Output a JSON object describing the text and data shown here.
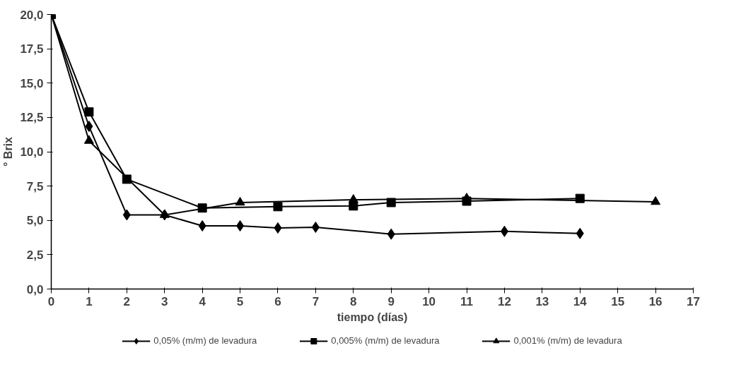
{
  "chart_data": {
    "type": "line",
    "xlabel": "tiempo (días)",
    "ylabel": "° Brix",
    "xlim": [
      0,
      17
    ],
    "xticks": [
      0,
      1,
      2,
      3,
      4,
      5,
      6,
      7,
      8,
      9,
      10,
      11,
      12,
      13,
      14,
      15,
      16,
      17
    ],
    "ylim": [
      0,
      20
    ],
    "yticks": [
      {
        "value": 0,
        "label": "0,0"
      },
      {
        "value": 2.5,
        "label": "2,5"
      },
      {
        "value": 5,
        "label": "5,0"
      },
      {
        "value": 7.5,
        "label": "7,5"
      },
      {
        "value": 10,
        "label": "10,0"
      },
      {
        "value": 12.5,
        "label": "12,5"
      },
      {
        "value": 15,
        "label": "15,0"
      },
      {
        "value": 17.5,
        "label": "17,5"
      },
      {
        "value": 20,
        "label": "20,0"
      }
    ],
    "grid": false,
    "legend": "bottom",
    "line_style": "solid",
    "series": [
      {
        "name": "0,05% (m/m) de levadura",
        "color": "#000000",
        "marker": "diamond",
        "x": [
          0,
          1,
          2,
          3,
          4,
          5,
          6,
          7,
          9,
          12,
          14
        ],
        "values": [
          20,
          11.85,
          5.4,
          5.4,
          4.6,
          4.6,
          4.45,
          4.5,
          4.0,
          4.2,
          4.05
        ]
      },
      {
        "name": "0,005% (m/m) de levadura",
        "color": "#000000",
        "marker": "square",
        "x": [
          0,
          1,
          2,
          4,
          6,
          8,
          9,
          11,
          14
        ],
        "values": [
          20,
          12.9,
          8.0,
          5.9,
          6.0,
          6.05,
          6.3,
          6.4,
          6.6
        ]
      },
      {
        "name": "0,001% (m/m) de levadura",
        "color": "#000000",
        "marker": "triangle",
        "x": [
          0,
          1,
          3,
          5,
          8,
          11,
          16
        ],
        "values": [
          20,
          10.8,
          5.4,
          6.3,
          6.5,
          6.6,
          6.35
        ]
      }
    ]
  }
}
